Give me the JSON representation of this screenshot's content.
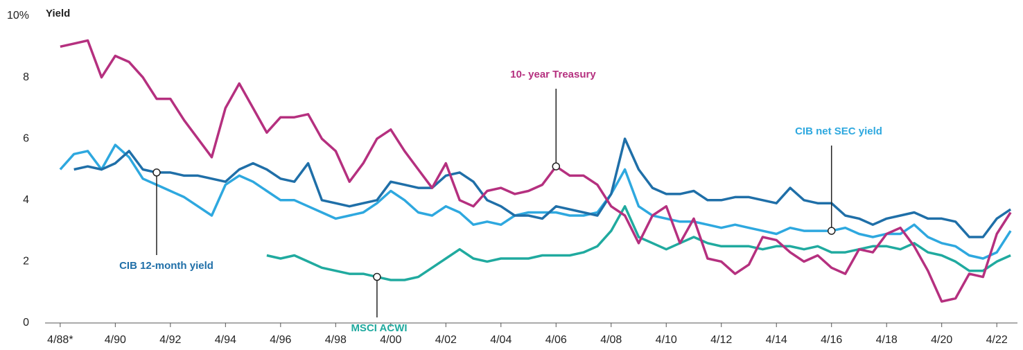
{
  "chart_data": {
    "type": "line",
    "y_label": "Yield",
    "x": [
      1988.25,
      1988.75,
      1989.25,
      1989.75,
      1990.25,
      1990.75,
      1991.25,
      1991.75,
      1992.25,
      1992.75,
      1993.25,
      1993.75,
      1994.25,
      1994.75,
      1995.25,
      1995.75,
      1996.25,
      1996.75,
      1997.25,
      1997.75,
      1998.25,
      1998.75,
      1999.25,
      1999.75,
      2000.25,
      2000.75,
      2001.25,
      2001.75,
      2002.25,
      2002.75,
      2003.25,
      2003.75,
      2004.25,
      2004.75,
      2005.25,
      2005.75,
      2006.25,
      2006.75,
      2007.25,
      2007.75,
      2008.25,
      2008.75,
      2009.25,
      2009.75,
      2010.25,
      2010.75,
      2011.25,
      2011.75,
      2012.25,
      2012.75,
      2013.25,
      2013.75,
      2014.25,
      2014.75,
      2015.25,
      2015.75,
      2016.25,
      2016.75,
      2017.25,
      2017.75,
      2018.25,
      2018.75,
      2019.25,
      2019.75,
      2020.25,
      2020.75,
      2021.25,
      2021.75,
      2022.25,
      2022.75
    ],
    "series": [
      {
        "name": "10- year Treasury",
        "color": "#b5307f",
        "values": [
          9.0,
          9.1,
          9.2,
          8.0,
          8.7,
          8.5,
          8.0,
          7.3,
          7.3,
          6.6,
          6.0,
          5.4,
          7.0,
          7.8,
          7.0,
          6.2,
          6.7,
          6.7,
          6.8,
          6.0,
          5.6,
          4.6,
          5.2,
          6.0,
          6.3,
          5.6,
          5.0,
          4.4,
          5.2,
          4.0,
          3.8,
          4.3,
          4.4,
          4.2,
          4.3,
          4.5,
          5.1,
          4.8,
          4.8,
          4.5,
          3.8,
          3.5,
          2.6,
          3.5,
          3.8,
          2.6,
          3.4,
          2.1,
          2.0,
          1.6,
          1.9,
          2.8,
          2.7,
          2.3,
          2.0,
          2.2,
          1.8,
          1.6,
          2.4,
          2.3,
          2.9,
          3.1,
          2.5,
          1.7,
          0.7,
          0.8,
          1.6,
          1.5,
          2.9,
          3.6
        ]
      },
      {
        "name": "CIB 12-month yield",
        "color": "#1f6fa8",
        "values": [
          null,
          5.0,
          5.1,
          5.0,
          5.2,
          5.6,
          5.0,
          4.9,
          4.9,
          4.8,
          4.8,
          4.7,
          4.6,
          5.0,
          5.2,
          5.0,
          4.7,
          4.6,
          5.2,
          4.0,
          3.9,
          3.8,
          3.9,
          4.0,
          4.6,
          4.5,
          4.4,
          4.4,
          4.8,
          4.9,
          4.6,
          4.0,
          3.8,
          3.5,
          3.5,
          3.4,
          3.8,
          3.7,
          3.6,
          3.5,
          4.2,
          6.0,
          5.0,
          4.4,
          4.2,
          4.2,
          4.3,
          4.0,
          4.0,
          4.1,
          4.1,
          4.0,
          3.9,
          4.4,
          4.0,
          3.9,
          3.9,
          3.5,
          3.4,
          3.2,
          3.4,
          3.5,
          3.6,
          3.4,
          3.4,
          3.3,
          2.8,
          2.8,
          3.4,
          3.7
        ]
      },
      {
        "name": "CIB net SEC yield",
        "color": "#2ea8df",
        "values": [
          5.0,
          5.5,
          5.6,
          5.0,
          5.8,
          5.4,
          4.7,
          4.5,
          4.3,
          4.1,
          3.8,
          3.5,
          4.5,
          4.8,
          4.6,
          4.3,
          4.0,
          4.0,
          3.8,
          3.6,
          3.4,
          3.5,
          3.6,
          3.9,
          4.3,
          4.0,
          3.6,
          3.5,
          3.8,
          3.6,
          3.2,
          3.3,
          3.2,
          3.5,
          3.6,
          3.6,
          3.6,
          3.5,
          3.5,
          3.6,
          4.2,
          5.0,
          3.8,
          3.5,
          3.4,
          3.3,
          3.3,
          3.2,
          3.1,
          3.2,
          3.1,
          3.0,
          2.9,
          3.1,
          3.0,
          3.0,
          3.0,
          3.1,
          2.9,
          2.8,
          2.9,
          2.9,
          3.2,
          2.8,
          2.6,
          2.5,
          2.2,
          2.1,
          2.3,
          3.0
        ]
      },
      {
        "name": "MSCI ACWI",
        "color": "#20aa9f",
        "values": [
          null,
          null,
          null,
          null,
          null,
          null,
          null,
          null,
          null,
          null,
          null,
          null,
          null,
          null,
          null,
          2.2,
          2.1,
          2.2,
          2.0,
          1.8,
          1.7,
          1.6,
          1.6,
          1.5,
          1.4,
          1.4,
          1.5,
          1.8,
          2.1,
          2.4,
          2.1,
          2.0,
          2.1,
          2.1,
          2.1,
          2.2,
          2.2,
          2.2,
          2.3,
          2.5,
          3.0,
          3.8,
          2.8,
          2.6,
          2.4,
          2.6,
          2.8,
          2.6,
          2.5,
          2.5,
          2.5,
          2.4,
          2.5,
          2.5,
          2.4,
          2.5,
          2.3,
          2.3,
          2.4,
          2.5,
          2.5,
          2.4,
          2.6,
          2.3,
          2.2,
          2.0,
          1.7,
          1.7,
          2.0,
          2.2
        ]
      }
    ],
    "xlim": [
      1987.7,
      2023.0
    ],
    "xticks": [
      {
        "value": 1988.25,
        "label": "4/88*"
      },
      {
        "value": 1990.25,
        "label": "4/90"
      },
      {
        "value": 1992.25,
        "label": "4/92"
      },
      {
        "value": 1994.25,
        "label": "4/94"
      },
      {
        "value": 1996.25,
        "label": "4/96"
      },
      {
        "value": 1998.25,
        "label": "4/98"
      },
      {
        "value": 2000.25,
        "label": "4/00"
      },
      {
        "value": 2002.25,
        "label": "4/02"
      },
      {
        "value": 2004.25,
        "label": "4/04"
      },
      {
        "value": 2006.25,
        "label": "4/06"
      },
      {
        "value": 2008.25,
        "label": "4/08"
      },
      {
        "value": 2010.25,
        "label": "4/10"
      },
      {
        "value": 2012.25,
        "label": "4/12"
      },
      {
        "value": 2014.25,
        "label": "4/14"
      },
      {
        "value": 2016.25,
        "label": "4/16"
      },
      {
        "value": 2018.25,
        "label": "4/18"
      },
      {
        "value": 2020.25,
        "label": "4/20"
      },
      {
        "value": 2022.25,
        "label": "4/22"
      }
    ],
    "ylim": [
      0,
      10
    ],
    "yticks": [
      0,
      2,
      4,
      6,
      8,
      {
        "value": 10,
        "label": "10%"
      }
    ],
    "grid": false
  }
}
